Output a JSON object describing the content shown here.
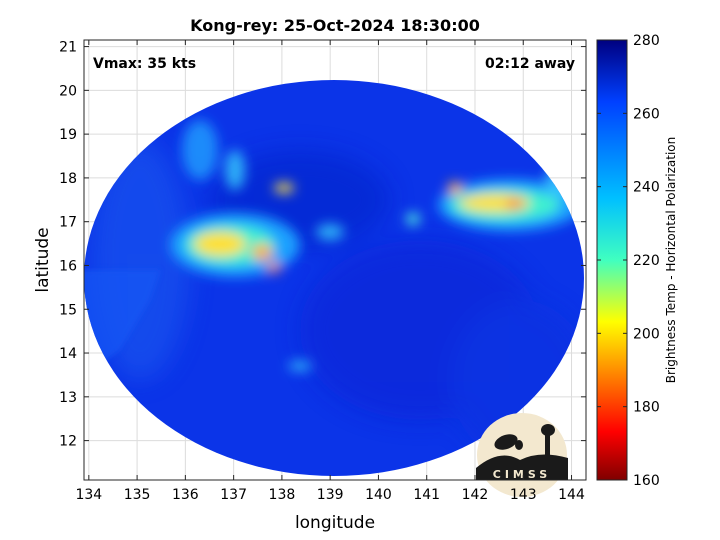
{
  "title": "Kong-rey: 25-Oct-2024 18:30:00",
  "vmax_label": "Vmax: 35 kts",
  "away_label": "02:12 away",
  "x_axis": {
    "label": "longitude",
    "ticks": [
      134,
      135,
      136,
      137,
      138,
      139,
      140,
      141,
      142,
      143,
      144
    ],
    "range": [
      133.9,
      144.3
    ]
  },
  "y_axis": {
    "label": "latitude",
    "ticks": [
      12,
      13,
      14,
      15,
      16,
      17,
      18,
      19,
      20,
      21
    ],
    "range": [
      11.1,
      21.15
    ]
  },
  "colorbar": {
    "label": "Brightness Temp - Horizontal Polarization",
    "ticks": [
      160,
      180,
      200,
      220,
      240,
      260,
      280
    ],
    "range": [
      160,
      280
    ],
    "colormap": "jet"
  },
  "logo_text": "CIMSS",
  "colors": {
    "background_blue": "#0a32e6",
    "frame": "#262626",
    "grid": "#dcdcdc"
  }
}
